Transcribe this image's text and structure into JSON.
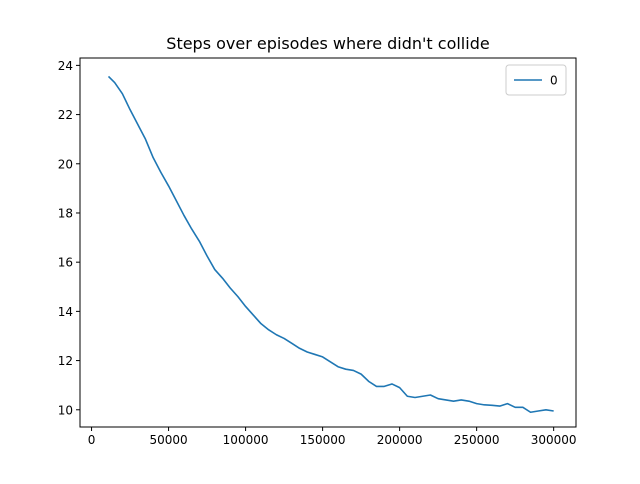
{
  "chart_data": {
    "type": "line",
    "title": "Steps over episodes where didn't collide",
    "xlabel": "",
    "ylabel": "",
    "xlim": [
      -7500,
      314500
    ],
    "ylim": [
      9.3,
      24.3
    ],
    "xticks": [
      0,
      50000,
      100000,
      150000,
      200000,
      250000,
      300000
    ],
    "xtick_labels": [
      "0",
      "50000",
      "100000",
      "150000",
      "200000",
      "250000",
      "300000"
    ],
    "yticks": [
      10,
      12,
      14,
      16,
      18,
      20,
      22,
      24
    ],
    "ytick_labels": [
      "10",
      "12",
      "14",
      "16",
      "18",
      "20",
      "22",
      "24"
    ],
    "grid": false,
    "legend": {
      "position": "top-right",
      "entries": [
        "0"
      ]
    },
    "series": [
      {
        "name": "0",
        "color": "#1f77b4",
        "x": [
          11000,
          15000,
          20000,
          25000,
          30000,
          35000,
          40000,
          45000,
          50000,
          55000,
          60000,
          65000,
          70000,
          75000,
          80000,
          85000,
          90000,
          95000,
          100000,
          105000,
          110000,
          115000,
          120000,
          125000,
          130000,
          135000,
          140000,
          145000,
          150000,
          155000,
          160000,
          165000,
          170000,
          175000,
          180000,
          185000,
          190000,
          195000,
          200000,
          205000,
          210000,
          215000,
          220000,
          225000,
          230000,
          235000,
          240000,
          245000,
          250000,
          255000,
          260000,
          265000,
          270000,
          275000,
          280000,
          285000,
          290000,
          295000,
          300000
        ],
        "y": [
          23.55,
          23.3,
          22.85,
          22.2,
          21.6,
          21.0,
          20.25,
          19.65,
          19.1,
          18.5,
          17.9,
          17.35,
          16.85,
          16.25,
          15.7,
          15.35,
          14.95,
          14.6,
          14.2,
          13.85,
          13.5,
          13.25,
          13.05,
          12.9,
          12.7,
          12.5,
          12.35,
          12.25,
          12.15,
          11.95,
          11.75,
          11.65,
          11.6,
          11.45,
          11.15,
          10.95,
          10.95,
          11.05,
          10.9,
          10.55,
          10.5,
          10.55,
          10.6,
          10.45,
          10.4,
          10.35,
          10.4,
          10.35,
          10.25,
          10.2,
          10.18,
          10.15,
          10.25,
          10.1,
          10.1,
          9.9,
          9.95,
          10.0,
          9.95
        ]
      }
    ]
  }
}
